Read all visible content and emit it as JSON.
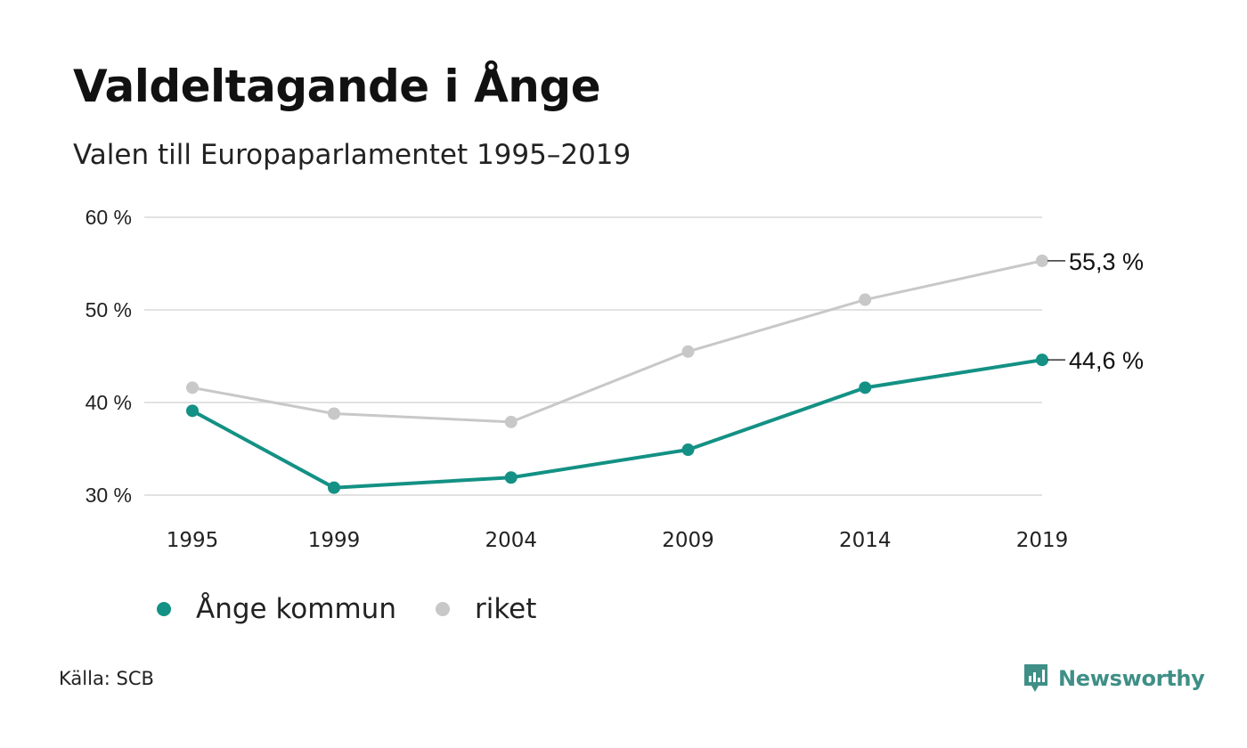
{
  "header": {
    "title": "Valdeltagande i Ånge",
    "subtitle": "Valen till Europaparlamentet 1995–2019"
  },
  "footer": {
    "source": "Källa: SCB",
    "brand": "Newsworthy"
  },
  "colors": {
    "ange": "#139184",
    "riket": "#c8c8c8",
    "grid": "#e2e2e2",
    "brand": "#3f8f87"
  },
  "chart_data": {
    "type": "line",
    "x": [
      "1995",
      "1999",
      "2004",
      "2009",
      "2014",
      "2019"
    ],
    "series": [
      {
        "name": "Ånge kommun",
        "values": [
          39.1,
          30.8,
          31.9,
          34.9,
          41.6,
          44.6
        ],
        "end_label": "44,6 %"
      },
      {
        "name": "riket",
        "values": [
          41.6,
          38.8,
          37.9,
          45.5,
          51.1,
          55.3
        ],
        "end_label": "55,3 %"
      }
    ],
    "yticks": [
      30,
      40,
      50,
      60
    ],
    "ytick_labels": [
      "30 %",
      "40 %",
      "50 %",
      "60 %"
    ],
    "ylim": [
      30,
      60
    ],
    "grid": true,
    "legend_position": "bottom-left",
    "title": "Valdeltagande i Ånge",
    "xlabel": "",
    "ylabel": ""
  }
}
